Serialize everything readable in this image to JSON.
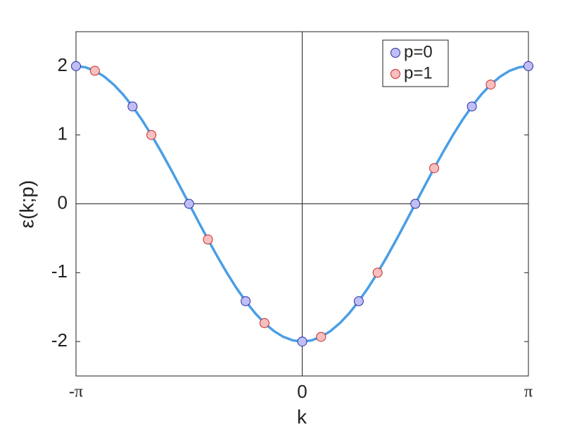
{
  "chart_data": {
    "type": "line",
    "xlabel": "k",
    "ylabel": "ε(k;p)",
    "xlim": [
      -3.1416,
      3.1416
    ],
    "ylim": [
      -2.5,
      2.5
    ],
    "xticks": [
      {
        "value": -3.1416,
        "label": "-π"
      },
      0,
      {
        "value": 3.1416,
        "label": "π"
      }
    ],
    "yticks": [
      -2,
      -1,
      0,
      1,
      2
    ],
    "legend": "upper right",
    "series": [
      {
        "mode": "line",
        "color": "#4a9ee6",
        "x": [
          -3.1416,
          -3.0107,
          -2.8798,
          -2.7489,
          -2.618,
          -2.4871,
          -2.3562,
          -2.2253,
          -2.0944,
          -1.9635,
          -1.8326,
          -1.7017,
          -1.5708,
          -1.4399,
          -1.309,
          -1.1781,
          -1.0472,
          -0.9163,
          -0.7854,
          -0.6545,
          -0.5236,
          -0.3927,
          -0.2618,
          -0.1309,
          0,
          0.1309,
          0.2618,
          0.3927,
          0.5236,
          0.6545,
          0.7854,
          0.9163,
          1.0472,
          1.1781,
          1.309,
          1.4399,
          1.5708,
          1.7017,
          1.8326,
          1.9635,
          2.0944,
          2.2253,
          2.3562,
          2.4871,
          2.618,
          2.7489,
          2.8798,
          3.0107,
          3.1416
        ],
        "values": [
          2,
          1.983,
          1.932,
          1.848,
          1.732,
          1.587,
          1.414,
          1.218,
          1,
          0.765,
          0.518,
          0.261,
          0,
          -0.261,
          -0.518,
          -0.765,
          -1,
          -1.218,
          -1.414,
          -1.587,
          -1.732,
          -1.848,
          -1.932,
          -1.983,
          -2,
          -1.983,
          -1.932,
          -1.848,
          -1.732,
          -1.587,
          -1.414,
          -1.218,
          -1,
          -0.765,
          -0.518,
          -0.261,
          0,
          0.261,
          0.518,
          0.765,
          1,
          1.218,
          1.414,
          1.587,
          1.732,
          1.848,
          1.932,
          1.983,
          2
        ]
      },
      {
        "mode": "markers",
        "name": "p=0",
        "color": "#bfbff5",
        "edgecolor": "#2a2aa0",
        "x": [
          -3.1416,
          -2.3562,
          -1.5708,
          -0.7854,
          0,
          0.7854,
          1.5708,
          2.3562,
          3.1416
        ],
        "values": [
          2,
          1.414,
          0,
          -1.414,
          -2,
          -1.414,
          0,
          1.414,
          2
        ]
      },
      {
        "mode": "markers",
        "name": "p=1",
        "color": "#f7c0c0",
        "edgecolor": "#c82828",
        "x": [
          -2.8798,
          -2.0944,
          -1.309,
          -0.5236,
          0.2618,
          1.0472,
          1.8326,
          2.618
        ],
        "values": [
          1.932,
          1,
          -0.518,
          -1.732,
          -1.932,
          -1,
          0.518,
          1.732
        ]
      }
    ]
  }
}
